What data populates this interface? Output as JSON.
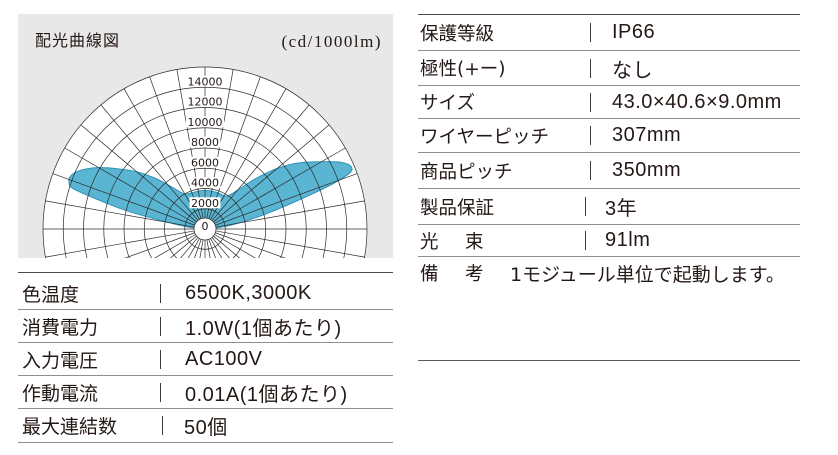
{
  "chart_data": {
    "type": "line",
    "coordinate_system": "polar",
    "title": "配光曲線図",
    "unit_label": "(cd/1000lm)",
    "ring_labels": [
      "0",
      "2000",
      "4000",
      "6000",
      "8000",
      "10000",
      "12000",
      "14000"
    ],
    "radial_range": [
      0,
      16000
    ],
    "ring_step": 2000,
    "angle_step_deg": 10,
    "series": [
      {
        "angles_deg": [
          -90,
          -87,
          -84,
          -81,
          -79,
          -77,
          -75,
          -73,
          -71,
          -69,
          -66,
          -62,
          -58,
          -54,
          -50,
          -45,
          -40,
          -35,
          -30,
          -20,
          -10,
          0,
          10,
          20,
          30,
          35,
          40,
          45,
          50,
          55,
          60,
          64,
          67,
          69,
          71,
          73,
          75,
          78,
          81,
          84,
          87,
          90
        ],
        "values": [
          300,
          700,
          1400,
          2800,
          4500,
          7800,
          10500,
          13600,
          14200,
          14300,
          13900,
          12800,
          11400,
          10000,
          8800,
          7200,
          5700,
          4600,
          4000,
          3800,
          3800,
          3800,
          3800,
          3800,
          3800,
          4000,
          5000,
          7000,
          9300,
          11400,
          13300,
          15000,
          15700,
          15200,
          12700,
          9500,
          7200,
          4700,
          2800,
          1400,
          700,
          300
        ],
        "fill_color": "#5ab5d3",
        "stroke_color": "#2f93bb"
      }
    ]
  },
  "spec_left": [
    {
      "label": "色温度",
      "value": "6500K,3000K"
    },
    {
      "label": "消費電力",
      "value": "1.0W(1個あたり)"
    },
    {
      "label": "入力電圧",
      "value": "AC100V"
    },
    {
      "label": "作動電流",
      "value": "0.01A(1個あたり)"
    },
    {
      "label": "最大連結数",
      "value": "50個"
    }
  ],
  "spec_right": [
    {
      "label": "保護等級",
      "value": "IP66"
    },
    {
      "label": "極性(+ー)",
      "value": "なし"
    },
    {
      "label": "サイズ",
      "value": "43.0×40.6×9.0mm"
    },
    {
      "label": "ワイヤーピッチ",
      "value": "307mm"
    },
    {
      "label": "商品ピッチ",
      "value": "350mm"
    },
    {
      "label": "製品保証",
      "value": "3年"
    },
    {
      "label": "光　束",
      "value": "91lm"
    }
  ],
  "note": {
    "label": "備　考",
    "value": "1モジュール単位で起動します。"
  }
}
